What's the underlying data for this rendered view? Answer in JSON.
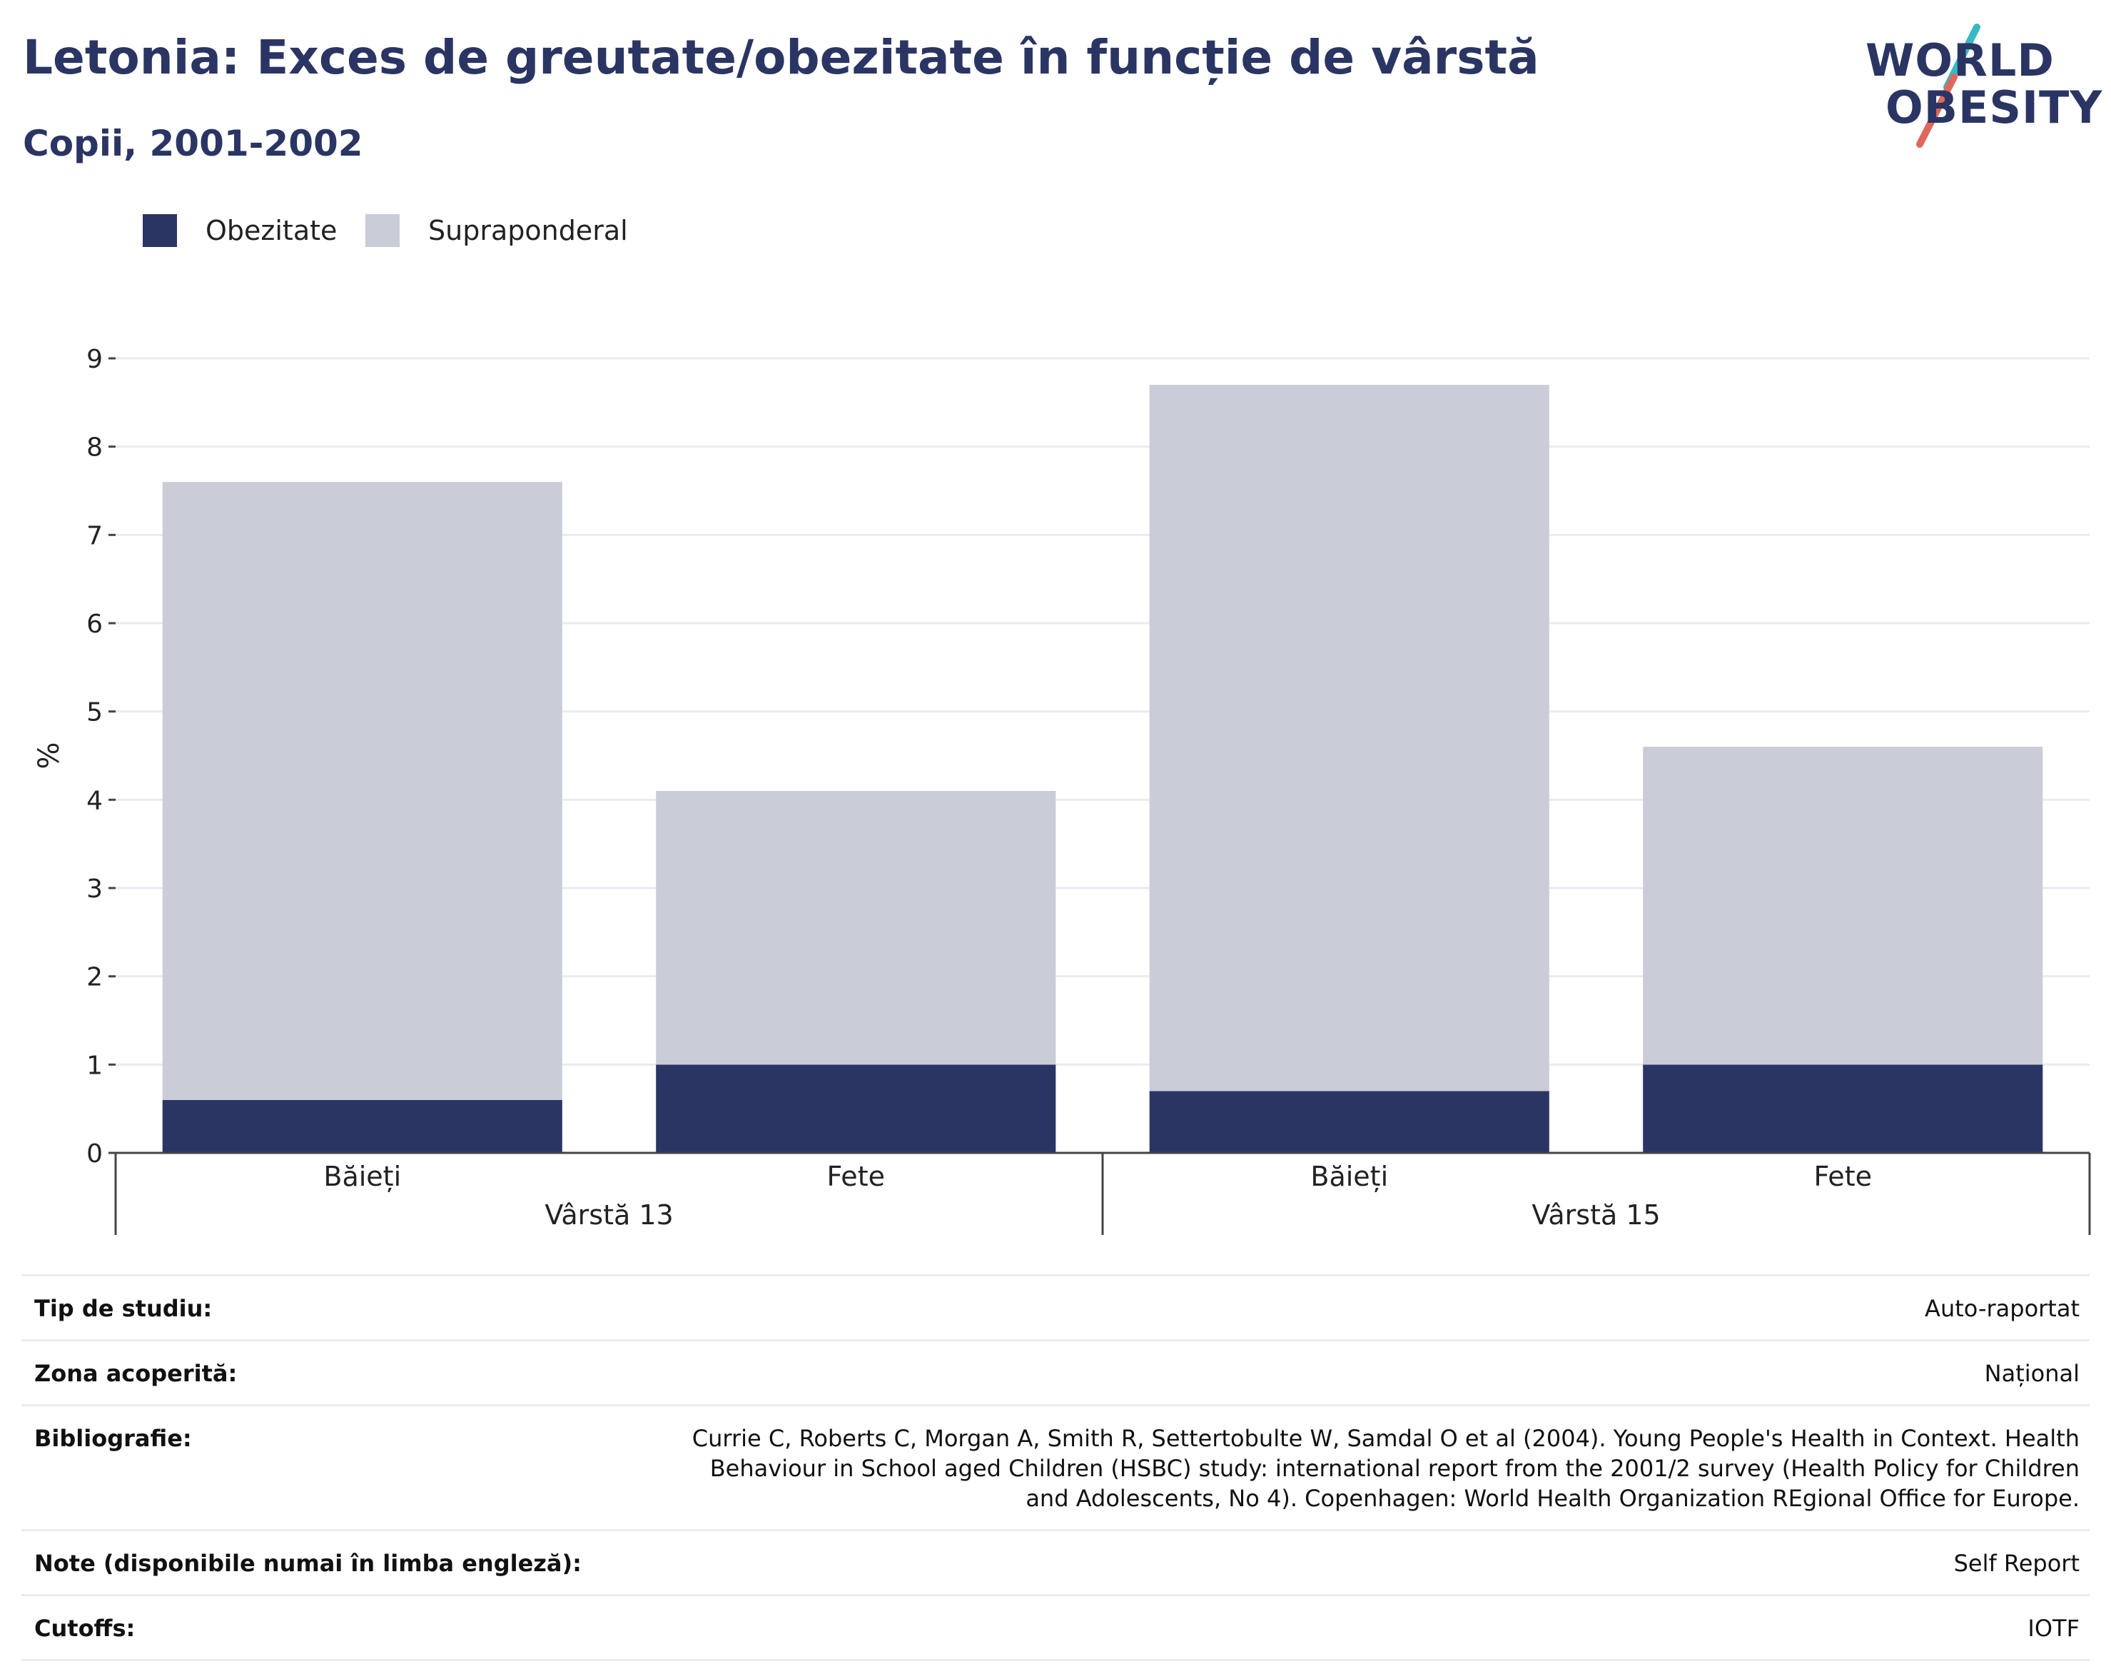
{
  "header": {
    "title": "Letonia: Exces de greutate/obezitate în funcție de vârstă",
    "subtitle": "Copii, 2001-2002"
  },
  "logo": {
    "line1": "WORLD",
    "line2": "OBESITY",
    "colors": {
      "navy": "#2a3563",
      "teal": "#36b9c2",
      "coral": "#e0685b"
    }
  },
  "legend": [
    {
      "label": "Obezitate",
      "color": "#2a3563"
    },
    {
      "label": "Supraponderal",
      "color": "#caccd8"
    }
  ],
  "chart_data": {
    "type": "bar",
    "stacked": true,
    "ylabel": "%",
    "ylim": [
      0,
      9
    ],
    "yticks": [
      0,
      1,
      2,
      3,
      4,
      5,
      6,
      7,
      8,
      9
    ],
    "grid": true,
    "legend_position": "top-left",
    "groups": [
      {
        "label": "Vârstă 13",
        "categories": [
          "Băieți",
          "Fete"
        ]
      },
      {
        "label": "Vârstă 15",
        "categories": [
          "Băieți",
          "Fete"
        ]
      }
    ],
    "categories": [
      "Băieți",
      "Fete",
      "Băieți",
      "Fete"
    ],
    "series": [
      {
        "name": "Obezitate",
        "color": "#2a3563",
        "values": [
          0.6,
          1.0,
          0.7,
          1.0
        ]
      },
      {
        "name": "Supraponderal",
        "color": "#caccd8",
        "values": [
          7.0,
          3.1,
          8.0,
          3.6
        ]
      }
    ]
  },
  "info": [
    {
      "key": "Tip de studiu:",
      "value": "Auto-raportat"
    },
    {
      "key": "Zona acoperită:",
      "value": "Național"
    },
    {
      "key": "Bibliografie:",
      "value": "Currie C, Roberts C, Morgan A, Smith R, Settertobulte W, Samdal O et al (2004). Young People's Health in Context. Health Behaviour in School aged Children (HSBC) study: international report from the 2001/2 survey (Health Policy for Children and Adolescents, No 4). Copenhagen: World Health Organization REgional Office for Europe."
    },
    {
      "key": "Note (disponibile numai în limba engleză):",
      "value": "Self Report"
    },
    {
      "key": "Cutoffs:",
      "value": "IOTF"
    }
  ]
}
